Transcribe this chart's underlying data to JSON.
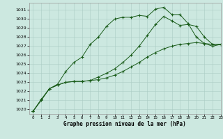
{
  "bg_color": "#cce8e0",
  "grid_color": "#aaccC4",
  "line_color": "#1a5c1a",
  "title": "Graphe pression niveau de la mer (hPa)",
  "xlim": [
    -0.5,
    23
  ],
  "ylim": [
    1019.5,
    1031.8
  ],
  "yticks": [
    1020,
    1021,
    1022,
    1023,
    1024,
    1025,
    1026,
    1027,
    1028,
    1029,
    1030,
    1031
  ],
  "xticks": [
    0,
    1,
    2,
    3,
    4,
    5,
    6,
    7,
    8,
    9,
    10,
    11,
    12,
    13,
    14,
    15,
    16,
    17,
    18,
    19,
    20,
    21,
    22,
    23
  ],
  "line1_x": [
    0,
    1,
    2,
    3,
    4,
    5,
    6,
    7,
    8,
    9,
    10,
    11,
    12,
    13,
    14,
    15,
    16,
    17,
    18,
    19,
    20,
    21,
    22,
    23
  ],
  "line1_y": [
    1019.8,
    1021.1,
    1022.3,
    1022.8,
    1024.2,
    1025.2,
    1025.8,
    1027.2,
    1028.0,
    1029.2,
    1030.0,
    1030.2,
    1030.2,
    1030.4,
    1030.3,
    1031.1,
    1031.3,
    1030.5,
    1030.5,
    1029.5,
    1028.0,
    1027.3,
    1027.0,
    1027.2
  ],
  "line2_x": [
    0,
    1,
    2,
    3,
    4,
    5,
    6,
    7,
    8,
    9,
    10,
    11,
    12,
    13,
    14,
    15,
    16,
    17,
    18,
    19,
    20,
    21,
    22,
    23
  ],
  "line2_y": [
    1019.8,
    1021.1,
    1022.3,
    1022.7,
    1023.0,
    1023.1,
    1023.1,
    1023.2,
    1023.3,
    1023.5,
    1023.8,
    1024.2,
    1024.7,
    1025.2,
    1025.8,
    1026.3,
    1026.7,
    1027.0,
    1027.2,
    1027.3,
    1027.4,
    1027.3,
    1027.2,
    1027.2
  ],
  "line3_x": [
    0,
    1,
    2,
    3,
    4,
    5,
    6,
    7,
    8,
    9,
    10,
    11,
    12,
    13,
    14,
    15,
    16,
    17,
    18,
    19,
    20,
    21,
    22,
    23
  ],
  "line3_y": [
    1019.8,
    1021.0,
    1022.3,
    1022.7,
    1023.0,
    1023.1,
    1023.1,
    1023.2,
    1023.6,
    1024.0,
    1024.5,
    1025.2,
    1026.0,
    1027.0,
    1028.2,
    1029.4,
    1030.3,
    1029.8,
    1029.3,
    1029.4,
    1029.2,
    1028.0,
    1027.2,
    1027.2
  ]
}
